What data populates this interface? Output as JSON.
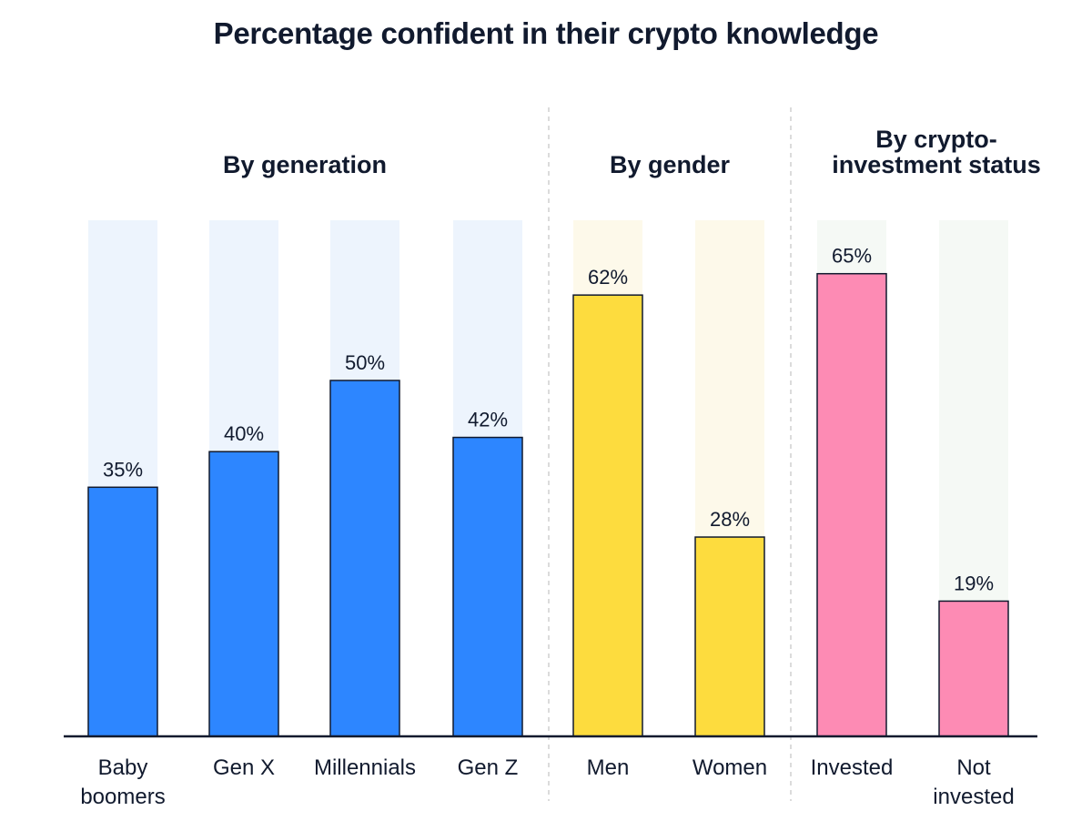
{
  "chart_data": {
    "type": "bar",
    "title": "Percentage confident in their crypto knowledge",
    "xlabel": "",
    "ylabel": "",
    "ylim": [
      0,
      100
    ],
    "unit": "%",
    "grid": false,
    "groups": [
      {
        "title_lines": [
          "By generation"
        ],
        "colors": {
          "bar": "#2d86ff",
          "background": "#edf4fd"
        },
        "categories": [
          {
            "label_lines": [
              "Baby",
              "boomers"
            ],
            "value": 35,
            "value_label": "35%"
          },
          {
            "label_lines": [
              "Gen X"
            ],
            "value": 40,
            "value_label": "40%"
          },
          {
            "label_lines": [
              "Millennials"
            ],
            "value": 50,
            "value_label": "50%"
          },
          {
            "label_lines": [
              "Gen Z"
            ],
            "value": 42,
            "value_label": "42%"
          }
        ]
      },
      {
        "title_lines": [
          "By gender"
        ],
        "colors": {
          "bar": "#fddc3e",
          "background": "#fdf9ea"
        },
        "categories": [
          {
            "label_lines": [
              "Men"
            ],
            "value": 62,
            "value_label": "62%"
          },
          {
            "label_lines": [
              "Women"
            ],
            "value": 28,
            "value_label": "28%"
          }
        ]
      },
      {
        "title_lines": [
          "By crypto-",
          "investment status"
        ],
        "colors": {
          "bar": "#fd8bb4",
          "background": "#f5f9f5"
        },
        "categories": [
          {
            "label_lines": [
              "Invested"
            ],
            "value": 65,
            "value_label": "65%"
          },
          {
            "label_lines": [
              "Not",
              "invested"
            ],
            "value": 19,
            "value_label": "19%"
          }
        ]
      }
    ]
  },
  "colors": {
    "bar_outline": "#111a2e",
    "baseline": "#111a2e",
    "divider": "#cfcfcf"
  }
}
